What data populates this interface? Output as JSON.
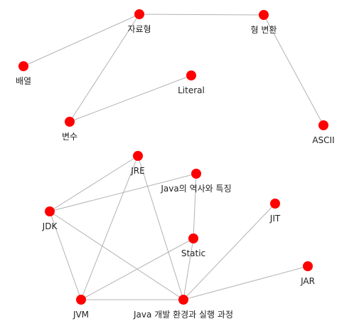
{
  "graph": {
    "colors": {
      "node": "#ff0000",
      "edge": "#b3b3b3",
      "label": "#222222",
      "background": "#ffffff"
    },
    "nodes": [
      {
        "id": "jaryohyeong",
        "label": "자료형"
      },
      {
        "id": "hyeongbyeonhwan",
        "label": "형 변환"
      },
      {
        "id": "baeyeol",
        "label": "배열"
      },
      {
        "id": "literal",
        "label": "Literal"
      },
      {
        "id": "byeonsu",
        "label": "변수"
      },
      {
        "id": "ascii",
        "label": "ASCII"
      },
      {
        "id": "jre",
        "label": "JRE"
      },
      {
        "id": "java-history",
        "label": "Java의 역사와 특징"
      },
      {
        "id": "jdk",
        "label": "JDK"
      },
      {
        "id": "jit",
        "label": "JIT"
      },
      {
        "id": "static",
        "label": "Static"
      },
      {
        "id": "jar",
        "label": "JAR"
      },
      {
        "id": "jvm",
        "label": "JVM"
      },
      {
        "id": "java-dev-env",
        "label": "Java 개발 환경과 실행 과정"
      }
    ],
    "edges": [
      [
        "jaryohyeong",
        "hyeongbyeonhwan"
      ],
      [
        "jaryohyeong",
        "baeyeol"
      ],
      [
        "jaryohyeong",
        "byeonsu"
      ],
      [
        "literal",
        "byeonsu"
      ],
      [
        "hyeongbyeonhwan",
        "ascii"
      ],
      [
        "jre",
        "jdk"
      ],
      [
        "jre",
        "jvm"
      ],
      [
        "jre",
        "java-dev-env"
      ],
      [
        "java-history",
        "jdk"
      ],
      [
        "java-history",
        "static"
      ],
      [
        "jdk",
        "jvm"
      ],
      [
        "jdk",
        "java-dev-env"
      ],
      [
        "jvm",
        "static"
      ],
      [
        "jvm",
        "java-dev-env"
      ],
      [
        "static",
        "java-dev-env"
      ],
      [
        "jit",
        "java-dev-env"
      ],
      [
        "jar",
        "java-dev-env"
      ]
    ]
  }
}
